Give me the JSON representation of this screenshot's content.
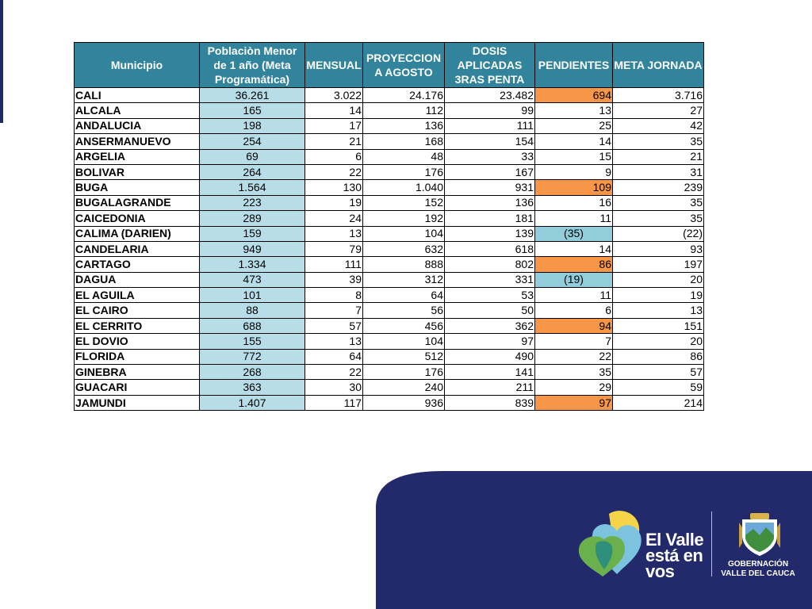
{
  "table": {
    "headers": [
      "Municipio",
      "Poblaciòn Menor de 1 año (Meta Programática)",
      "MENSUAL",
      "PROYECCION A AGOSTO",
      "DOSIS APLICADAS 3RAS PENTA",
      "PENDIENTES",
      "META JORNADA"
    ],
    "rows": [
      {
        "municipio": "CALI",
        "poblacion": "36.261",
        "mensual": "3.022",
        "proyeccion": "24.176",
        "dosis": "23.482",
        "pendientes": "694",
        "meta": "3.716",
        "status": "high"
      },
      {
        "municipio": "ALCALA",
        "poblacion": "165",
        "mensual": "14",
        "proyeccion": "112",
        "dosis": "99",
        "pendientes": "13",
        "meta": "27",
        "status": "normal"
      },
      {
        "municipio": "ANDALUCIA",
        "poblacion": "198",
        "mensual": "17",
        "proyeccion": "136",
        "dosis": "111",
        "pendientes": "25",
        "meta": "42",
        "status": "normal"
      },
      {
        "municipio": "ANSERMANUEVO",
        "poblacion": "254",
        "mensual": "21",
        "proyeccion": "168",
        "dosis": "154",
        "pendientes": "14",
        "meta": "35",
        "status": "normal"
      },
      {
        "municipio": "ARGELIA",
        "poblacion": "69",
        "mensual": "6",
        "proyeccion": "48",
        "dosis": "33",
        "pendientes": "15",
        "meta": "21",
        "status": "normal"
      },
      {
        "municipio": "BOLIVAR",
        "poblacion": "264",
        "mensual": "22",
        "proyeccion": "176",
        "dosis": "167",
        "pendientes": "9",
        "meta": "31",
        "status": "normal"
      },
      {
        "municipio": "BUGA",
        "poblacion": "1.564",
        "mensual": "130",
        "proyeccion": "1.040",
        "dosis": "931",
        "pendientes": "109",
        "meta": "239",
        "status": "high"
      },
      {
        "municipio": "BUGALAGRANDE",
        "poblacion": "223",
        "mensual": "19",
        "proyeccion": "152",
        "dosis": "136",
        "pendientes": "16",
        "meta": "35",
        "status": "normal"
      },
      {
        "municipio": "CAICEDONIA",
        "poblacion": "289",
        "mensual": "24",
        "proyeccion": "192",
        "dosis": "181",
        "pendientes": "11",
        "meta": "35",
        "status": "normal"
      },
      {
        "municipio": "CALIMA (DARIEN)",
        "poblacion": "159",
        "mensual": "13",
        "proyeccion": "104",
        "dosis": "139",
        "pendientes": "(35)",
        "meta": "(22)",
        "status": "negative"
      },
      {
        "municipio": "CANDELARIA",
        "poblacion": "949",
        "mensual": "79",
        "proyeccion": "632",
        "dosis": "618",
        "pendientes": "14",
        "meta": "93",
        "status": "normal"
      },
      {
        "municipio": "CARTAGO",
        "poblacion": "1.334",
        "mensual": "111",
        "proyeccion": "888",
        "dosis": "802",
        "pendientes": "86",
        "meta": "197",
        "status": "high"
      },
      {
        "municipio": "DAGUA",
        "poblacion": "473",
        "mensual": "39",
        "proyeccion": "312",
        "dosis": "331",
        "pendientes": "(19)",
        "meta": "20",
        "status": "negative"
      },
      {
        "municipio": "EL AGUILA",
        "poblacion": "101",
        "mensual": "8",
        "proyeccion": "64",
        "dosis": "53",
        "pendientes": "11",
        "meta": "19",
        "status": "normal"
      },
      {
        "municipio": "EL CAIRO",
        "poblacion": "88",
        "mensual": "7",
        "proyeccion": "56",
        "dosis": "50",
        "pendientes": "6",
        "meta": "13",
        "status": "normal"
      },
      {
        "municipio": "EL CERRITO",
        "poblacion": "688",
        "mensual": "57",
        "proyeccion": "456",
        "dosis": "362",
        "pendientes": "94",
        "meta": "151",
        "status": "high"
      },
      {
        "municipio": "EL DOVIO",
        "poblacion": "155",
        "mensual": "13",
        "proyeccion": "104",
        "dosis": "97",
        "pendientes": "7",
        "meta": "20",
        "status": "normal"
      },
      {
        "municipio": "FLORIDA",
        "poblacion": "772",
        "mensual": "64",
        "proyeccion": "512",
        "dosis": "490",
        "pendientes": "22",
        "meta": "86",
        "status": "normal"
      },
      {
        "municipio": "GINEBRA",
        "poblacion": "268",
        "mensual": "22",
        "proyeccion": "176",
        "dosis": "141",
        "pendientes": "35",
        "meta": "57",
        "status": "normal"
      },
      {
        "municipio": "GUACARI",
        "poblacion": "363",
        "mensual": "30",
        "proyeccion": "240",
        "dosis": "211",
        "pendientes": "29",
        "meta": "59",
        "status": "normal"
      },
      {
        "municipio": "JAMUNDI",
        "poblacion": "1.407",
        "mensual": "117",
        "proyeccion": "936",
        "dosis": "839",
        "pendientes": "97",
        "meta": "214",
        "status": "high"
      }
    ]
  },
  "colors": {
    "header_bg": "#31849b",
    "poblacion_bg": "#b7dee8",
    "pendiente_high_bg": "#f79646",
    "pendiente_negative_bg": "#92cddc",
    "footer_navy": "#232a6b"
  },
  "footer": {
    "logo_lines": [
      "El Valle",
      "está en",
      "vos"
    ],
    "gov_lines": [
      "GOBERNACIÓN",
      "VALLE DEL CAUCA"
    ],
    "icons": [
      "heart-logo-icon",
      "coat-of-arms-icon"
    ]
  }
}
